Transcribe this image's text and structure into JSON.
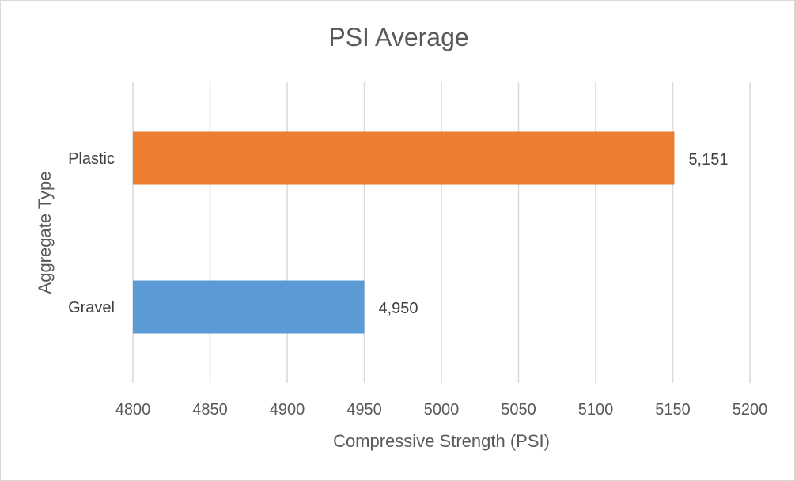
{
  "chart_data": {
    "type": "bar",
    "orientation": "horizontal",
    "title": "PSI Average",
    "xlabel": "Compressive Strength (PSI)",
    "ylabel": "Aggregate Type",
    "categories": [
      "Plastic",
      "Gravel"
    ],
    "values": [
      5151,
      4950
    ],
    "data_labels": [
      "5,151",
      "4,950"
    ],
    "bar_colors": [
      "#ed7d31",
      "#5b9bd5"
    ],
    "xlim": [
      4800,
      5200
    ],
    "xticks": [
      4800,
      4850,
      4900,
      4950,
      5000,
      5050,
      5100,
      5150,
      5200
    ],
    "grid": "vertical",
    "legend": "none"
  },
  "colors": {
    "gridline": "#d9d9d9",
    "text": "#595959"
  }
}
